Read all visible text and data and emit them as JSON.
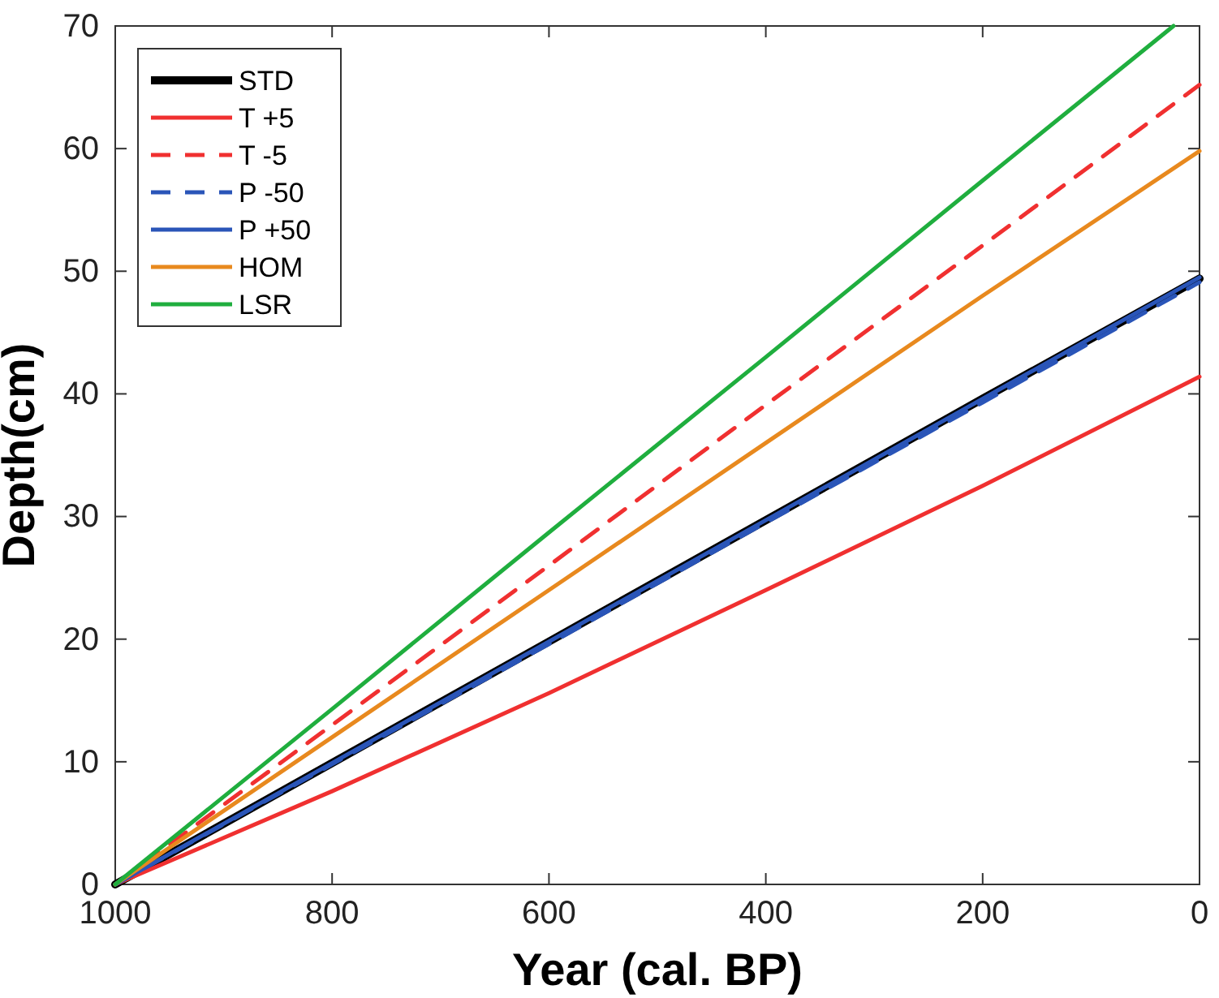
{
  "chart_data": {
    "type": "line",
    "xlabel": "Year (cal. BP)",
    "ylabel": "Depth(cm)",
    "xlim": [
      1000,
      0
    ],
    "ylim": [
      0,
      70
    ],
    "xticks": [
      1000,
      800,
      600,
      400,
      200,
      0
    ],
    "yticks": [
      0,
      10,
      20,
      30,
      40,
      50,
      60,
      70
    ],
    "legend": "top left",
    "grid": false,
    "line_style": "solid",
    "series": [
      {
        "name": "STD",
        "color": "#000000",
        "x": [
          1000,
          800,
          600,
          400,
          200,
          0
        ],
        "values": [
          0,
          9.9,
          19.8,
          29.7,
          39.6,
          49.4
        ]
      },
      {
        "name": "T +5",
        "color": "#f03030",
        "x": [
          1000,
          800,
          600,
          400,
          200,
          0
        ],
        "values": [
          0,
          7.6,
          15.6,
          24,
          32.5,
          41.4
        ]
      },
      {
        "name": "T -5",
        "color": "#f03030",
        "line_style": "dashed",
        "x": [
          1000,
          800,
          600,
          400,
          200,
          0
        ],
        "values": [
          0,
          13,
          26,
          39.1,
          52.1,
          65.2
        ]
      },
      {
        "name": "P -50",
        "color": "#2a55b8",
        "line_style": "dashed",
        "x": [
          1000,
          800,
          600,
          400,
          200,
          0
        ],
        "values": [
          0,
          9.8,
          19.6,
          29.5,
          39.3,
          49.1
        ]
      },
      {
        "name": "P +50",
        "color": "#2a55b8",
        "x": [
          1000,
          800,
          600,
          400,
          200,
          0
        ],
        "values": [
          0,
          9.9,
          19.8,
          29.7,
          39.6,
          49.5
        ]
      },
      {
        "name": "HOM",
        "color": "#e8891e",
        "x": [
          1000,
          800,
          600,
          400,
          200,
          0
        ],
        "values": [
          0,
          12,
          24,
          36,
          48,
          59.8
        ]
      },
      {
        "name": "LSR",
        "color": "#1fae3e",
        "x": [
          1000,
          800,
          600,
          400,
          200,
          24
        ],
        "values": [
          0,
          14.3,
          28.7,
          43,
          57.4,
          70
        ]
      }
    ]
  }
}
